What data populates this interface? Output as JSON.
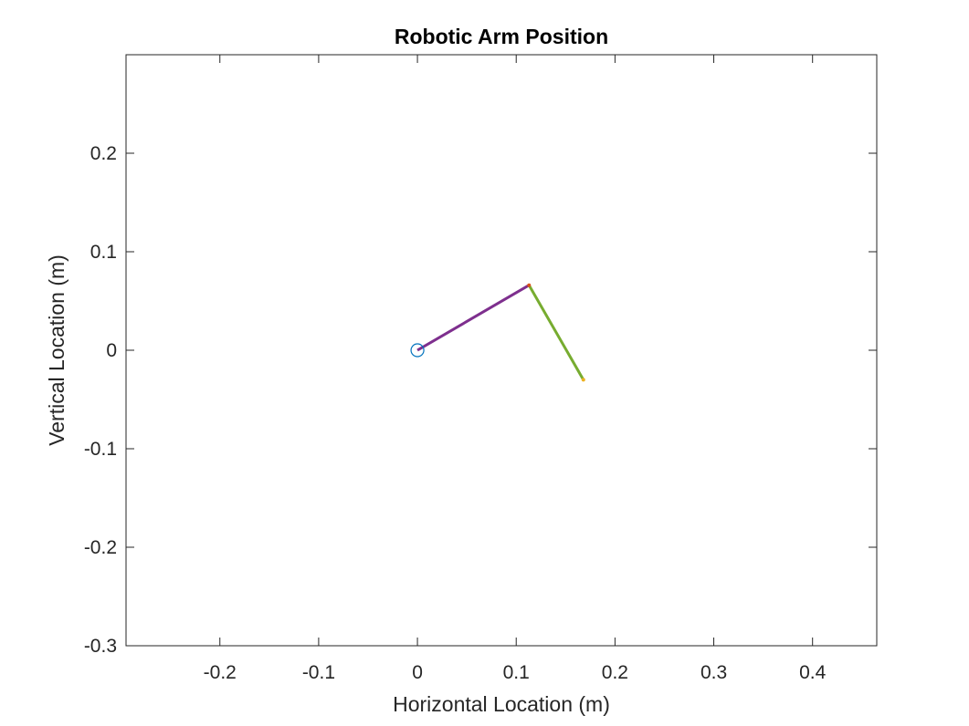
{
  "chart_data": {
    "type": "line",
    "title": "Robotic Arm Position",
    "xlabel": "Horizontal Location (m)",
    "ylabel": "Vertical Location (m)",
    "xlim": [
      -0.295,
      0.465
    ],
    "ylim": [
      -0.3,
      0.3
    ],
    "xticks": [
      -0.2,
      -0.1,
      0,
      0.1,
      0.2,
      0.3,
      0.4
    ],
    "xtick_labels": [
      "-0.2",
      "-0.1",
      "0",
      "0.1",
      "0.2",
      "0.3",
      "0.4"
    ],
    "yticks": [
      -0.3,
      -0.2,
      -0.1,
      0,
      0.1,
      0.2
    ],
    "ytick_labels": [
      "-0.3",
      "-0.2",
      "-0.1",
      "0",
      "0.1",
      "0.2"
    ],
    "grid": false,
    "legend": "none",
    "series": [
      {
        "color": "#7E2F8E",
        "x": [
          0,
          0.113
        ],
        "y": [
          0,
          0.066
        ]
      },
      {
        "color": "#77AC30",
        "x": [
          0.113,
          0.168
        ],
        "y": [
          0.066,
          -0.03
        ]
      }
    ],
    "base_marker": {
      "x": 0,
      "y": 0,
      "color": "#0072BD"
    },
    "joint_markers": [
      {
        "x": 0.113,
        "y": 0.066,
        "color": "#D95319"
      },
      {
        "x": 0.168,
        "y": -0.03,
        "color": "#EDB120"
      }
    ]
  }
}
